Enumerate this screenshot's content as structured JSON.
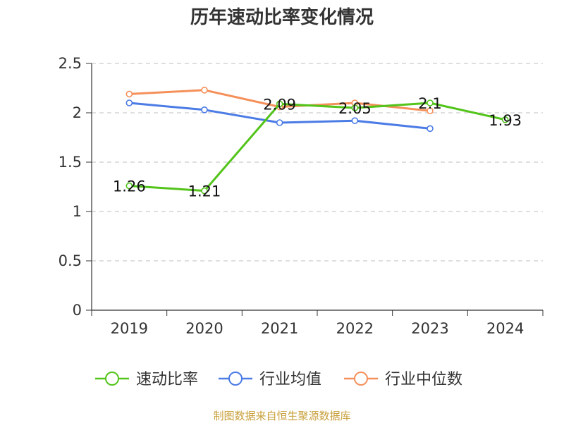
{
  "chart_data": {
    "type": "line",
    "title": "历年速动比率变化情况",
    "categories": [
      "2019",
      "2020",
      "2021",
      "2022",
      "2023",
      "2024"
    ],
    "ylim": [
      0,
      2.5
    ],
    "yticks": [
      "0",
      "0.5",
      "1",
      "1.5",
      "2",
      "2.5"
    ],
    "grid": true,
    "legend_position": "bottom",
    "series": [
      {
        "name": "速动比率",
        "color": "#52c41a",
        "values": [
          1.26,
          1.21,
          2.09,
          2.05,
          2.1,
          1.93
        ],
        "labels": [
          "1.26",
          "1.21",
          "2.09",
          "2.05",
          "2.1",
          "1.93"
        ]
      },
      {
        "name": "行业均值",
        "color": "#4b7be5",
        "values": [
          2.1,
          2.03,
          1.9,
          1.92,
          1.84,
          null
        ]
      },
      {
        "name": "行业中位数",
        "color": "#f5905a",
        "values": [
          2.19,
          2.23,
          2.06,
          2.1,
          2.02,
          null
        ]
      }
    ],
    "source": "制图数据来自恒生聚源数据库"
  }
}
